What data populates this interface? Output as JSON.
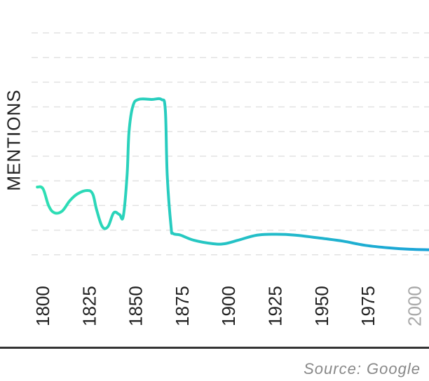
{
  "chart_data": {
    "type": "line",
    "title": "",
    "xlabel": "",
    "ylabel": "MENTIONS",
    "xlim": [
      1797,
      2005
    ],
    "x_ticks": [
      "1800",
      "1825",
      "1850",
      "1875",
      "1900",
      "1925",
      "1950",
      "1975",
      "2000"
    ],
    "grid": true,
    "series": [
      {
        "values": [
          [
            1800,
            0.33
          ],
          [
            1803,
            0.32
          ],
          [
            1806,
            0.22
          ],
          [
            1809,
            0.18
          ],
          [
            1813,
            0.19
          ],
          [
            1817,
            0.25
          ],
          [
            1821,
            0.29
          ],
          [
            1826,
            0.31
          ],
          [
            1829,
            0.29
          ],
          [
            1831,
            0.2
          ],
          [
            1834,
            0.1
          ],
          [
            1837,
            0.1
          ],
          [
            1840,
            0.18
          ],
          [
            1843,
            0.17
          ],
          [
            1845,
            0.16
          ],
          [
            1847,
            0.4
          ],
          [
            1848,
            0.65
          ],
          [
            1850,
            0.8
          ],
          [
            1853,
            0.84
          ],
          [
            1860,
            0.84
          ],
          [
            1865,
            0.84
          ],
          [
            1867,
            0.78
          ],
          [
            1868,
            0.4
          ],
          [
            1870,
            0.1
          ],
          [
            1871,
            0.06
          ],
          [
            1875,
            0.05
          ],
          [
            1882,
            0.02
          ],
          [
            1892,
            0.0
          ],
          [
            1898,
            0.0
          ],
          [
            1905,
            0.02
          ],
          [
            1915,
            0.05
          ],
          [
            1925,
            0.055
          ],
          [
            1935,
            0.05
          ],
          [
            1950,
            0.03
          ],
          [
            1960,
            0.015
          ],
          [
            1972,
            -0.01
          ],
          [
            1985,
            -0.025
          ],
          [
            1995,
            -0.032
          ],
          [
            2005,
            -0.035
          ]
        ]
      }
    ],
    "colors": {
      "start": "#2ee0b3",
      "end": "#1aa3d8"
    }
  },
  "footer": {
    "source": "Source: Google"
  }
}
